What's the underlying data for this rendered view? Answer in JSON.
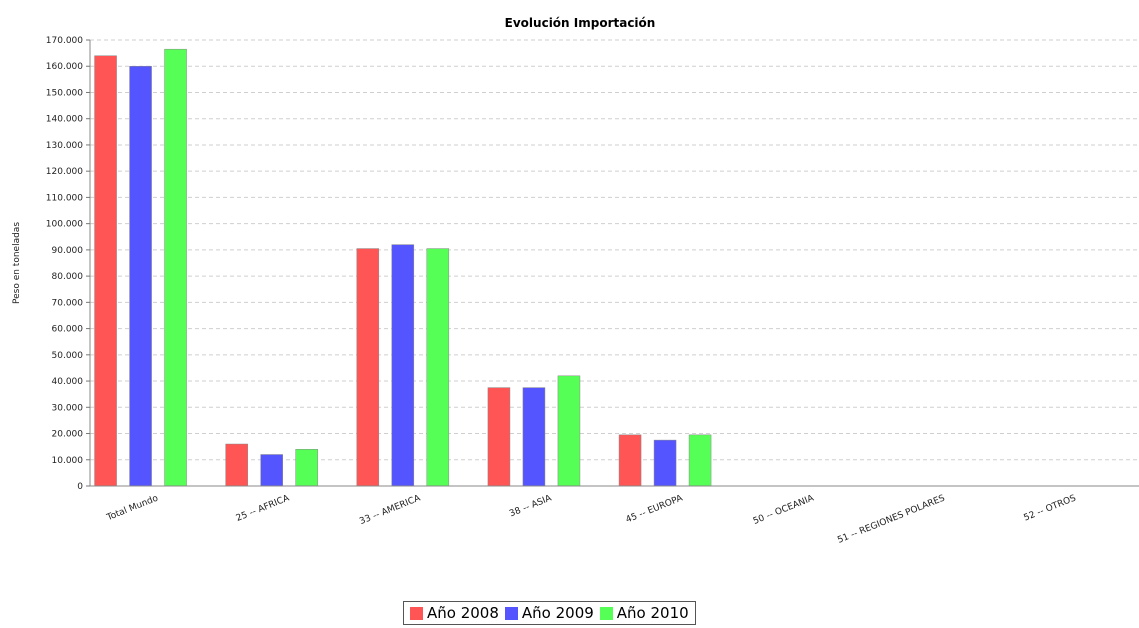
{
  "chart_data": {
    "type": "bar",
    "title": "Evolución Importación",
    "xlabel": "",
    "ylabel": "Peso en toneladas",
    "ylim": [
      0,
      170000
    ],
    "ytick_values": [
      0,
      10000,
      20000,
      30000,
      40000,
      50000,
      60000,
      70000,
      80000,
      90000,
      100000,
      110000,
      120000,
      130000,
      140000,
      150000,
      160000,
      170000
    ],
    "ytick_labels": [
      "0",
      "10.000",
      "20.000",
      "30.000",
      "40.000",
      "50.000",
      "60.000",
      "70.000",
      "80.000",
      "90.000",
      "100.000",
      "110.000",
      "120.000",
      "130.000",
      "140.000",
      "150.000",
      "160.000",
      "170.000"
    ],
    "grid": true,
    "legend_position": "bottom",
    "categories": [
      "Total Mundo",
      "25 -- AFRICA",
      "33 -- AMERICA",
      "38 -- ASIA",
      "45 -- EUROPA",
      "50 -- OCEANIA",
      "51 -- REGIONES POLARES",
      "52 -- OTROS"
    ],
    "series": [
      {
        "name": "Año 2008",
        "color": "#ff5555",
        "values": [
          164000,
          16000,
          90500,
          37500,
          19500,
          0,
          0,
          0
        ]
      },
      {
        "name": "Año 2009",
        "color": "#5555ff",
        "values": [
          160000,
          12000,
          92000,
          37500,
          17500,
          0,
          0,
          0
        ]
      },
      {
        "name": "Año 2010",
        "color": "#55ff55",
        "values": [
          166500,
          14000,
          90500,
          42000,
          19500,
          0,
          0,
          0
        ]
      }
    ]
  }
}
